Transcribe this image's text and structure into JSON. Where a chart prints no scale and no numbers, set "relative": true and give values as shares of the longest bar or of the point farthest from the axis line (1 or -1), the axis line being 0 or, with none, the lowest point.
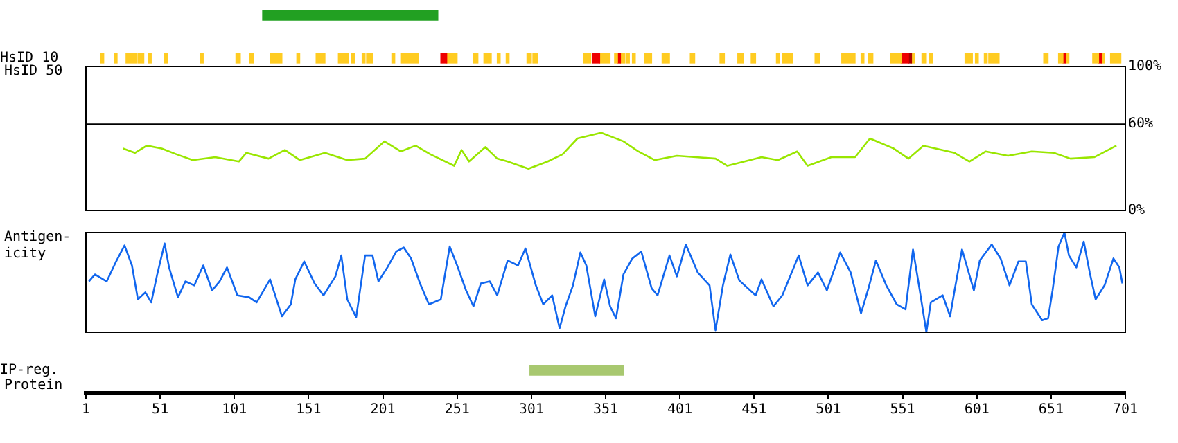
{
  "chart_data": [
    {
      "type": "bar",
      "orientation": "horizontal",
      "categories": [
        null
      ],
      "base": [
        120
      ],
      "values": [
        118
      ],
      "color": "#22a022",
      "xlim": [
        1,
        701
      ],
      "tick_labels": false
    },
    {
      "type": "bar",
      "orientation": "horizontal",
      "categories": [
        "HsID 10"
      ],
      "xlim": [
        1,
        701
      ],
      "tick_labels": "y",
      "series": [
        {
          "color": "#ffcc22",
          "base": [
            11
          ],
          "values": [
            2
          ]
        },
        {
          "color": "#ffcc22",
          "base": [
            20
          ],
          "values": [
            2
          ]
        },
        {
          "color": "#ffcc22",
          "base": [
            28
          ],
          "values": [
            7
          ]
        },
        {
          "color": "#ffcc22",
          "base": [
            36
          ],
          "values": [
            4
          ]
        },
        {
          "color": "#ffcc22",
          "base": [
            43
          ],
          "values": [
            2
          ]
        },
        {
          "color": "#ffcc22",
          "base": [
            54
          ],
          "values": [
            2
          ]
        },
        {
          "color": "#ffcc22",
          "base": [
            78
          ],
          "values": [
            2
          ]
        },
        {
          "color": "#ffcc22",
          "base": [
            102
          ],
          "values": [
            3
          ]
        },
        {
          "color": "#ffcc22",
          "base": [
            111
          ],
          "values": [
            3
          ]
        },
        {
          "color": "#ffcc22",
          "base": [
            125
          ],
          "values": [
            8
          ]
        },
        {
          "color": "#ffcc22",
          "base": [
            143
          ],
          "values": [
            2
          ]
        },
        {
          "color": "#ffcc22",
          "base": [
            156
          ],
          "values": [
            6
          ]
        },
        {
          "color": "#ffcc22",
          "base": [
            171
          ],
          "values": [
            7
          ]
        },
        {
          "color": "#ffcc22",
          "base": [
            180
          ],
          "values": [
            2
          ]
        },
        {
          "color": "#ffcc22",
          "base": [
            187
          ],
          "values": [
            2
          ]
        },
        {
          "color": "#ffcc22",
          "base": [
            190
          ],
          "values": [
            4
          ]
        },
        {
          "color": "#ffcc22",
          "base": [
            207
          ],
          "values": [
            2
          ]
        },
        {
          "color": "#ffcc22",
          "base": [
            213
          ],
          "values": [
            12
          ]
        },
        {
          "color": "#ee0000",
          "base": [
            240
          ],
          "values": [
            4
          ]
        },
        {
          "color": "#ffcc22",
          "base": [
            244
          ],
          "values": [
            7
          ]
        },
        {
          "color": "#ffcc22",
          "base": [
            262
          ],
          "values": [
            3
          ]
        },
        {
          "color": "#ffcc22",
          "base": [
            269
          ],
          "values": [
            5
          ]
        },
        {
          "color": "#ffcc22",
          "base": [
            278
          ],
          "values": [
            2
          ]
        },
        {
          "color": "#ffcc22",
          "base": [
            284
          ],
          "values": [
            2
          ]
        },
        {
          "color": "#ffcc22",
          "base": [
            298
          ],
          "values": [
            3
          ]
        },
        {
          "color": "#ffcc22",
          "base": [
            302
          ],
          "values": [
            3
          ]
        },
        {
          "color": "#ffcc22",
          "base": [
            336
          ],
          "values": [
            5
          ]
        },
        {
          "color": "#ee0000",
          "base": [
            342
          ],
          "values": [
            5
          ]
        },
        {
          "color": "#ffcc22",
          "base": [
            347
          ],
          "values": [
            7
          ]
        },
        {
          "color": "#ffcc22",
          "base": [
            357
          ],
          "values": [
            2
          ]
        },
        {
          "color": "#ee0000",
          "base": [
            359
          ],
          "values": [
            2
          ]
        },
        {
          "color": "#ffcc22",
          "base": [
            361
          ],
          "values": [
            3
          ]
        },
        {
          "color": "#ffcc22",
          "base": [
            365
          ],
          "values": [
            2
          ]
        },
        {
          "color": "#ffcc22",
          "base": [
            369
          ],
          "values": [
            2
          ]
        },
        {
          "color": "#ffcc22",
          "base": [
            377
          ],
          "values": [
            5
          ]
        },
        {
          "color": "#ffcc22",
          "base": [
            389
          ],
          "values": [
            5
          ]
        },
        {
          "color": "#ffcc22",
          "base": [
            408
          ],
          "values": [
            3
          ]
        },
        {
          "color": "#ffcc22",
          "base": [
            428
          ],
          "values": [
            3
          ]
        },
        {
          "color": "#ffcc22",
          "base": [
            440
          ],
          "values": [
            4
          ]
        },
        {
          "color": "#ffcc22",
          "base": [
            449
          ],
          "values": [
            3
          ]
        },
        {
          "color": "#ffcc22",
          "base": [
            466
          ],
          "values": [
            2
          ]
        },
        {
          "color": "#ffcc22",
          "base": [
            470
          ],
          "values": [
            7
          ]
        },
        {
          "color": "#ffcc22",
          "base": [
            492
          ],
          "values": [
            3
          ]
        },
        {
          "color": "#ffcc22",
          "base": [
            510
          ],
          "values": [
            9
          ]
        },
        {
          "color": "#ffcc22",
          "base": [
            523
          ],
          "values": [
            2
          ]
        },
        {
          "color": "#ffcc22",
          "base": [
            528
          ],
          "values": [
            3
          ]
        },
        {
          "color": "#ffcc22",
          "base": [
            543
          ],
          "values": [
            7
          ]
        },
        {
          "color": "#ee0000",
          "base": [
            550
          ],
          "values": [
            5
          ]
        },
        {
          "color": "#aa0000",
          "base": [
            555
          ],
          "values": [
            2
          ]
        },
        {
          "color": "#ffcc22",
          "base": [
            557
          ],
          "values": [
            2
          ]
        },
        {
          "color": "#ffcc22",
          "base": [
            564
          ],
          "values": [
            3
          ]
        },
        {
          "color": "#ffcc22",
          "base": [
            569
          ],
          "values": [
            2
          ]
        },
        {
          "color": "#ffcc22",
          "base": [
            593
          ],
          "values": [
            5
          ]
        },
        {
          "color": "#ffcc22",
          "base": [
            600
          ],
          "values": [
            2
          ]
        },
        {
          "color": "#ffcc22",
          "base": [
            606
          ],
          "values": [
            2
          ]
        },
        {
          "color": "#ffcc22",
          "base": [
            609
          ],
          "values": [
            7
          ]
        },
        {
          "color": "#ffcc22",
          "base": [
            646
          ],
          "values": [
            3
          ]
        },
        {
          "color": "#ffcc22",
          "base": [
            656
          ],
          "values": [
            3
          ]
        },
        {
          "color": "#ee0000",
          "base": [
            659
          ],
          "values": [
            2
          ]
        },
        {
          "color": "#ffcc22",
          "base": [
            661
          ],
          "values": [
            2
          ]
        },
        {
          "color": "#ffcc22",
          "base": [
            679
          ],
          "values": [
            4
          ]
        },
        {
          "color": "#ee0000",
          "base": [
            683
          ],
          "values": [
            2
          ]
        },
        {
          "color": "#ffcc22",
          "base": [
            685
          ],
          "values": [
            2
          ]
        },
        {
          "color": "#ffcc22",
          "base": [
            691
          ],
          "values": [
            7
          ]
        }
      ]
    },
    {
      "type": "line",
      "ylabel": "HsID 50",
      "xlim": [
        1,
        701
      ],
      "ylim": [
        0,
        100
      ],
      "yticks": [
        {
          "value": 0,
          "label": "0%"
        },
        {
          "value": 60,
          "label": "60%"
        },
        {
          "value": 100,
          "label": "100%"
        }
      ],
      "tick_labels": "y",
      "marker": "none",
      "ref_lines": [
        {
          "axis": "y",
          "value": 60,
          "color": "#000000"
        }
      ],
      "series": [
        {
          "color": "#99e600",
          "x": [
            26,
            34,
            42,
            52,
            62,
            73,
            88,
            104,
            109,
            124,
            135,
            145,
            162,
            177,
            189,
            202,
            213,
            223,
            233,
            249,
            254,
            259,
            270,
            278,
            285,
            299,
            312,
            322,
            332,
            348,
            363,
            373,
            384,
            399,
            425,
            433,
            456,
            467,
            480,
            487,
            503,
            519,
            529,
            545,
            555,
            565,
            586,
            596,
            607,
            622,
            638,
            653,
            664,
            680,
            695
          ],
          "values": [
            43,
            40,
            45,
            43,
            39,
            35,
            37,
            34,
            40,
            36,
            42,
            35,
            40,
            35,
            36,
            48,
            41,
            45,
            39,
            31,
            42,
            34,
            44,
            36,
            34,
            29,
            34,
            39,
            50,
            54,
            48,
            41,
            35,
            38,
            36,
            31,
            37,
            35,
            41,
            31,
            37,
            37,
            50,
            43,
            36,
            45,
            40,
            34,
            41,
            38,
            41,
            40,
            36,
            37,
            45
          ]
        }
      ]
    },
    {
      "type": "line",
      "ylabel": "Antigen-\nicity",
      "xlim": [
        1,
        701
      ],
      "relative": true,
      "tick_labels": false,
      "marker": "none",
      "series": [
        {
          "color": "#1166ee",
          "x": [
            3,
            7,
            15,
            21,
            27,
            32,
            36,
            41,
            45,
            49,
            54,
            57,
            63,
            68,
            74,
            80,
            86,
            91,
            96,
            103,
            111,
            116,
            125,
            133,
            139,
            142,
            148,
            155,
            161,
            169,
            173,
            177,
            183,
            189,
            194,
            198,
            204,
            210,
            215,
            220,
            226,
            232,
            240,
            246,
            251,
            257,
            262,
            267,
            273,
            278,
            285,
            292,
            297,
            304,
            309,
            315,
            320,
            324,
            329,
            334,
            338,
            344,
            350,
            354,
            358,
            363,
            369,
            375,
            382,
            386,
            394,
            399,
            405,
            413,
            421,
            425,
            430,
            435,
            441,
            452,
            456,
            464,
            470,
            481,
            487,
            494,
            500,
            509,
            516,
            523,
            528,
            533,
            540,
            547,
            553,
            558,
            562,
            567,
            570,
            578,
            583,
            586,
            591,
            599,
            603,
            611,
            617,
            623,
            629,
            634,
            638,
            645,
            649,
            652,
            656,
            660,
            663,
            668,
            673,
            677,
            681,
            687,
            693,
            697,
            699
          ],
          "values": [
            0.51,
            0.58,
            0.51,
            0.7,
            0.87,
            0.67,
            0.33,
            0.4,
            0.3,
            0.58,
            0.89,
            0.65,
            0.35,
            0.51,
            0.47,
            0.67,
            0.42,
            0.51,
            0.65,
            0.37,
            0.35,
            0.3,
            0.53,
            0.16,
            0.28,
            0.53,
            0.71,
            0.49,
            0.37,
            0.56,
            0.77,
            0.33,
            0.15,
            0.77,
            0.77,
            0.51,
            0.65,
            0.81,
            0.85,
            0.74,
            0.49,
            0.28,
            0.33,
            0.86,
            0.67,
            0.42,
            0.26,
            0.49,
            0.51,
            0.37,
            0.72,
            0.67,
            0.84,
            0.47,
            0.28,
            0.37,
            0.04,
            0.26,
            0.47,
            0.8,
            0.67,
            0.16,
            0.53,
            0.26,
            0.14,
            0.58,
            0.74,
            0.81,
            0.44,
            0.37,
            0.77,
            0.56,
            0.88,
            0.6,
            0.47,
            0.02,
            0.47,
            0.78,
            0.52,
            0.37,
            0.53,
            0.26,
            0.37,
            0.77,
            0.47,
            0.6,
            0.42,
            0.8,
            0.6,
            0.19,
            0.44,
            0.72,
            0.47,
            0.28,
            0.23,
            0.83,
            0.47,
            0,
            0.3,
            0.37,
            0.16,
            0.42,
            0.83,
            0.42,
            0.72,
            0.88,
            0.74,
            0.47,
            0.71,
            0.71,
            0.28,
            0.12,
            0.14,
            0.42,
            0.86,
            1,
            0.77,
            0.65,
            0.91,
            0.6,
            0.33,
            0.47,
            0.74,
            0.65,
            0.49
          ]
        }
      ]
    },
    {
      "type": "bar",
      "orientation": "horizontal",
      "categories": [
        "IP-reg."
      ],
      "base": [
        300
      ],
      "values": [
        63
      ],
      "color": "#a8c870",
      "xlim": [
        1,
        701
      ],
      "xticks": [
        1,
        51,
        101,
        151,
        201,
        251,
        301,
        351,
        401,
        451,
        501,
        551,
        601,
        651,
        701
      ],
      "xlabel": "Protein"
    }
  ]
}
